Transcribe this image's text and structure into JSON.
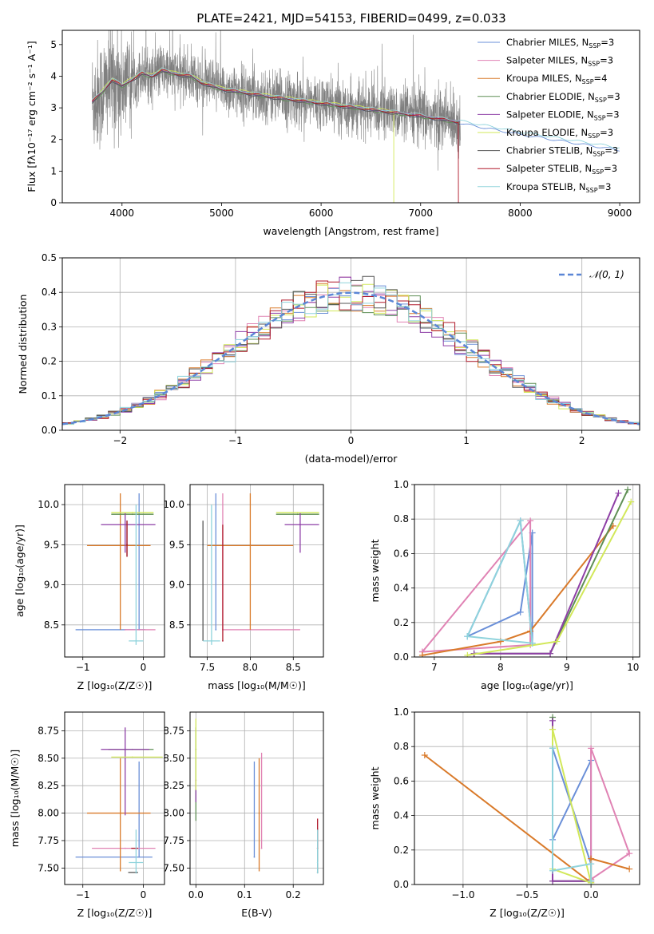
{
  "title": "PLATE=2421, MJD=54153, FIBERID=0499, z=0.033",
  "colors": {
    "chabrier_miles": "#6a8fd8",
    "salpeter_miles": "#e083b4",
    "kroupa_miles": "#d97a2a",
    "chabrier_elodie": "#5f8f55",
    "salpeter_elodie": "#8e3fa6",
    "kroupa_elodie": "#d2e85a",
    "chabrier_stelib": "#555555",
    "salpeter_stelib": "#b0182a",
    "kroupa_stelib": "#8fd3dc",
    "spectrum": "#808080",
    "normal": "#5b86d6"
  },
  "chart_data": [
    {
      "id": "spectrum",
      "type": "line",
      "title": "PLATE=2421, MJD=54153, FIBERID=0499, z=0.033",
      "xlabel": "wavelength [Angstrom, rest frame]",
      "ylabel": "Flux [fλ10⁻¹⁷ erg cm⁻² s⁻¹ A⁻¹]",
      "xlim": [
        3400,
        9200
      ],
      "ylim": [
        0,
        5.45
      ],
      "xticks": [
        4000,
        5000,
        6000,
        7000,
        8000,
        9000
      ],
      "yticks": [
        0,
        1,
        2,
        3,
        4,
        5
      ],
      "legend_position": "top-right",
      "legend": [
        {
          "main": "Chabrier MILES, N",
          "sub": "SSP",
          "tail": "=3",
          "color": "chabrier_miles"
        },
        {
          "main": "Salpeter MILES, N",
          "sub": "SSP",
          "tail": "=3",
          "color": "salpeter_miles"
        },
        {
          "main": "Kroupa MILES, N",
          "sub": "SSP",
          "tail": "=4",
          "color": "kroupa_miles"
        },
        {
          "main": "Chabrier ELODIE, N",
          "sub": "SSP",
          "tail": "=3",
          "color": "chabrier_elodie"
        },
        {
          "main": "Salpeter ELODIE, N",
          "sub": "SSP",
          "tail": "=3",
          "color": "salpeter_elodie"
        },
        {
          "main": "Kroupa ELODIE, N",
          "sub": "SSP",
          "tail": "=3",
          "color": "kroupa_elodie"
        },
        {
          "main": "Chabrier STELIB, N",
          "sub": "SSP",
          "tail": "=3",
          "color": "chabrier_stelib"
        },
        {
          "main": "Salpeter STELIB, N",
          "sub": "SSP",
          "tail": "=3",
          "color": "salpeter_stelib"
        },
        {
          "main": "Kroupa STELIB, N",
          "sub": "SSP",
          "tail": "=3",
          "color": "kroupa_stelib"
        }
      ],
      "model_curve": {
        "x": [
          3700,
          3800,
          3900,
          4000,
          4100,
          4200,
          4300,
          4400,
          4500,
          4700,
          4800,
          4900,
          5000,
          5200,
          5500,
          6000,
          6500,
          7000,
          7400,
          8000,
          8500,
          9000
        ],
        "y": [
          3.2,
          3.5,
          3.9,
          3.7,
          3.9,
          4.1,
          4.0,
          4.2,
          4.1,
          4.0,
          3.8,
          3.7,
          3.6,
          3.5,
          3.35,
          3.15,
          2.95,
          2.75,
          2.55,
          2.2,
          1.95,
          1.7
        ]
      },
      "spectrum_range": [
        3700,
        7400
      ]
    },
    {
      "id": "residuals",
      "type": "line",
      "xlabel": "(data-model)/error",
      "ylabel": "Normed distribution",
      "xlim": [
        -2.5,
        2.5
      ],
      "ylim": [
        0,
        0.5
      ],
      "xticks": [
        -2,
        -1,
        0,
        1,
        2
      ],
      "yticks": [
        0.0,
        0.1,
        0.2,
        0.3,
        0.4,
        0.5
      ],
      "legend": "𝒩(0, 1)",
      "legend_position": "top-right",
      "bin_width": 0.1
    },
    {
      "id": "age_vs_z",
      "type": "scatter",
      "xlabel": "Z [log₁₀(Z/Z☉)]",
      "ylabel": "age [log₁₀(age/yr)]",
      "xlim": [
        -1.3,
        0.35
      ],
      "ylim": [
        8.1,
        10.25
      ],
      "xticks": [
        -1,
        0
      ],
      "yticks": [
        8.5,
        9.0,
        9.5,
        10.0
      ],
      "points": [
        {
          "x": -0.07,
          "y": 8.44,
          "xerr": [
            1.05,
            0.1
          ],
          "yerr": [
            0.0,
            1.7
          ],
          "color": "chabrier_miles"
        },
        {
          "x": -0.3,
          "y": 8.44,
          "xerr": [
            0.0,
            0.5
          ],
          "yerr": [
            0.0,
            0.0
          ],
          "color": "salpeter_miles"
        },
        {
          "x": -0.38,
          "y": 9.49,
          "xerr": [
            0.55,
            0.5
          ],
          "yerr": [
            1.05,
            0.65
          ],
          "color": "kroupa_miles"
        },
        {
          "x": -0.18,
          "y": 9.88,
          "xerr": [
            0.35,
            0.35
          ],
          "yerr": [
            0.0,
            0.0
          ],
          "color": "chabrier_elodie"
        },
        {
          "x": -0.3,
          "y": 9.75,
          "xerr": [
            0.4,
            0.5
          ],
          "yerr": [
            0.35,
            0.15
          ],
          "color": "salpeter_elodie"
        },
        {
          "x": -0.18,
          "y": 9.9,
          "xerr": [
            0.35,
            0.35
          ],
          "yerr": [
            0.0,
            0.0
          ],
          "color": "kroupa_elodie"
        },
        {
          "x": -0.27,
          "y": 9.5,
          "xerr": [
            0.0,
            0.0
          ],
          "yerr": [
            0.15,
            0.3
          ],
          "color": "chabrier_stelib"
        },
        {
          "x": -0.27,
          "y": 9.5,
          "xerr": [
            0.0,
            0.0
          ],
          "yerr": [
            0.15,
            0.3
          ],
          "color": "salpeter_stelib"
        },
        {
          "x": -0.12,
          "y": 8.3,
          "xerr": [
            0.12,
            0.12
          ],
          "yerr": [
            0.05,
            1.7
          ],
          "color": "kroupa_stelib"
        }
      ]
    },
    {
      "id": "age_vs_mass",
      "type": "scatter",
      "xlabel": "mass [log₁₀(M/M☉)]",
      "ylabel": "",
      "xlim": [
        7.3,
        8.85
      ],
      "ylim": [
        8.1,
        10.25
      ],
      "xticks": [
        7.5,
        8.0,
        8.5
      ],
      "yticks": [
        8.5,
        9.0,
        9.5,
        10.0
      ],
      "points": [
        {
          "x": 7.6,
          "y": 8.44,
          "xerr": [
            0.0,
            0.0
          ],
          "yerr": [
            0.0,
            1.7
          ],
          "color": "chabrier_miles"
        },
        {
          "x": 7.68,
          "y": 8.44,
          "xerr": [
            0.0,
            0.9
          ],
          "yerr": [
            0.0,
            1.7
          ],
          "color": "salpeter_miles"
        },
        {
          "x": 8.0,
          "y": 9.49,
          "xerr": [
            0.5,
            0.5
          ],
          "yerr": [
            1.05,
            0.65
          ],
          "color": "kroupa_miles"
        },
        {
          "x": 8.55,
          "y": 9.88,
          "xerr": [
            0.25,
            0.25
          ],
          "yerr": [
            0.0,
            0.0
          ],
          "color": "chabrier_elodie"
        },
        {
          "x": 8.58,
          "y": 9.75,
          "xerr": [
            0.18,
            0.22
          ],
          "yerr": [
            0.35,
            0.15
          ],
          "color": "salpeter_elodie"
        },
        {
          "x": 8.55,
          "y": 9.9,
          "xerr": [
            0.25,
            0.25
          ],
          "yerr": [
            0.0,
            0.0
          ],
          "color": "kroupa_elodie"
        },
        {
          "x": 7.45,
          "y": 9.5,
          "xerr": [
            0.0,
            0.0
          ],
          "yerr": [
            1.2,
            0.3
          ],
          "color": "chabrier_stelib"
        },
        {
          "x": 7.68,
          "y": 8.3,
          "xerr": [
            0.0,
            0.0
          ],
          "yerr": [
            0.0,
            1.45
          ],
          "color": "salpeter_stelib"
        },
        {
          "x": 7.55,
          "y": 8.3,
          "xerr": [
            0.1,
            0.1
          ],
          "yerr": [
            0.05,
            1.7
          ],
          "color": "kroupa_stelib"
        }
      ]
    },
    {
      "id": "weight_vs_age",
      "type": "line",
      "xlabel": "age [log₁₀(age/yr)]",
      "ylabel": "mass weight",
      "xlim": [
        6.7,
        10.1
      ],
      "ylim": [
        0,
        1
      ],
      "xticks": [
        7,
        8,
        9,
        10
      ],
      "yticks": [
        0.0,
        0.2,
        0.4,
        0.6,
        0.8,
        1.0
      ],
      "series": [
        {
          "color": "chabrier_miles",
          "x": [
            7.5,
            8.3,
            8.48,
            8.48,
            8.3,
            7.5
          ],
          "y": [
            0.12,
            0.26,
            0.72,
            0.08,
            0.79,
            0.12
          ]
        },
        {
          "color": "salpeter_miles",
          "x": [
            6.82,
            8.45,
            8.45,
            6.82
          ],
          "y": [
            0.03,
            0.79,
            0.07,
            0.03
          ]
        },
        {
          "color": "kroupa_miles",
          "x": [
            6.82,
            8.0,
            8.45,
            9.7
          ],
          "y": [
            0.01,
            0.09,
            0.15,
            0.76
          ]
        },
        {
          "color": "chabrier_elodie",
          "x": [
            7.6,
            8.75,
            9.92
          ],
          "y": [
            0.02,
            0.02,
            0.97
          ]
        },
        {
          "color": "salpeter_elodie",
          "x": [
            7.6,
            8.75,
            9.78
          ],
          "y": [
            0.02,
            0.02,
            0.95
          ]
        },
        {
          "color": "kroupa_elodie",
          "x": [
            7.5,
            8.85,
            9.97
          ],
          "y": [
            0.01,
            0.09,
            0.9
          ]
        },
        {
          "color": "kroupa_stelib",
          "x": [
            7.5,
            8.3,
            8.48,
            7.5
          ],
          "y": [
            0.12,
            0.79,
            0.08,
            0.12
          ]
        }
      ]
    },
    {
      "id": "mass_vs_z",
      "type": "scatter",
      "xlabel": "Z [log₁₀(Z/Z☉)]",
      "ylabel": "mass [log₁₀(M/M☉)]",
      "xlim": [
        -1.3,
        0.35
      ],
      "ylim": [
        7.35,
        8.92
      ],
      "xticks": [
        -1,
        0
      ],
      "yticks": [
        7.5,
        7.75,
        8.0,
        8.25,
        8.5,
        8.75
      ],
      "points": [
        {
          "x": -0.07,
          "y": 7.6,
          "xerr": [
            1.05,
            0.22
          ],
          "yerr": [
            0.0,
            0.87
          ],
          "color": "chabrier_miles"
        },
        {
          "x": -0.3,
          "y": 7.68,
          "xerr": [
            0.55,
            0.5
          ],
          "yerr": [
            0.0,
            0.0
          ],
          "color": "salpeter_miles"
        },
        {
          "x": -0.38,
          "y": 8.0,
          "xerr": [
            0.55,
            0.5
          ],
          "yerr": [
            0.53,
            0.5
          ],
          "color": "kroupa_miles"
        },
        {
          "x": -0.18,
          "y": 8.58,
          "xerr": [
            0.4,
            0.35
          ],
          "yerr": [
            0.0,
            0.0
          ],
          "color": "chabrier_elodie"
        },
        {
          "x": -0.3,
          "y": 8.58,
          "xerr": [
            0.4,
            0.4
          ],
          "yerr": [
            0.6,
            0.2
          ],
          "color": "salpeter_elodie"
        },
        {
          "x": -0.18,
          "y": 8.51,
          "xerr": [
            0.35,
            0.5
          ],
          "yerr": [
            0.0,
            0.0
          ],
          "color": "kroupa_elodie"
        },
        {
          "x": -0.1,
          "y": 7.46,
          "xerr": [
            0.15,
            0.0
          ],
          "yerr": [
            0.0,
            0.0
          ],
          "color": "chabrier_stelib"
        },
        {
          "x": -0.1,
          "y": 7.68,
          "xerr": [
            0.1,
            0.0
          ],
          "yerr": [
            0.0,
            0.0
          ],
          "color": "salpeter_stelib"
        },
        {
          "x": -0.12,
          "y": 7.55,
          "xerr": [
            0.12,
            0.12
          ],
          "yerr": [
            0.1,
            0.3
          ],
          "color": "kroupa_stelib"
        }
      ]
    },
    {
      "id": "mass_vs_ebv",
      "type": "scatter",
      "xlabel": "E(B-V)",
      "ylabel": "",
      "xlim": [
        -0.012,
        0.262
      ],
      "ylim": [
        7.35,
        8.92
      ],
      "xticks": [
        0.0,
        0.1,
        0.2
      ],
      "yticks": [
        7.5,
        7.75,
        8.0,
        8.25,
        8.5,
        8.75
      ],
      "points": [
        {
          "x": 0.12,
          "y": 7.6,
          "xerr": [
            0.0,
            0.0
          ],
          "yerr": [
            0.0,
            0.87
          ],
          "color": "chabrier_miles"
        },
        {
          "x": 0.135,
          "y": 7.68,
          "xerr": [
            0.0,
            0.0
          ],
          "yerr": [
            0.0,
            0.87
          ],
          "color": "salpeter_miles"
        },
        {
          "x": 0.13,
          "y": 8.0,
          "xerr": [
            0.0,
            0.0
          ],
          "yerr": [
            0.53,
            0.5
          ],
          "color": "kroupa_miles"
        },
        {
          "x": 0.0,
          "y": 8.58,
          "xerr": [
            0.0,
            0.0
          ],
          "yerr": [
            0.65,
            0.2
          ],
          "color": "chabrier_elodie"
        },
        {
          "x": 0.0,
          "y": 8.3,
          "xerr": [
            0.0,
            0.0
          ],
          "yerr": [
            0.2,
            0.0
          ],
          "color": "salpeter_elodie"
        },
        {
          "x": 0.0,
          "y": 8.51,
          "xerr": [
            0.0,
            0.0
          ],
          "yerr": [
            0.3,
            0.35
          ],
          "color": "kroupa_elodie"
        },
        {
          "x": 0.25,
          "y": 7.46,
          "xerr": [
            0.0,
            0.0
          ],
          "yerr": [
            0.0,
            0.4
          ],
          "color": "chabrier_stelib"
        },
        {
          "x": 0.25,
          "y": 7.68,
          "xerr": [
            0.0,
            0.0
          ],
          "yerr": [
            0.0,
            0.27
          ],
          "color": "salpeter_stelib"
        },
        {
          "x": 0.25,
          "y": 7.55,
          "xerr": [
            0.0,
            0.0
          ],
          "yerr": [
            0.1,
            0.3
          ],
          "color": "kroupa_stelib"
        }
      ]
    },
    {
      "id": "weight_vs_z",
      "type": "line",
      "xlabel": "Z [log₁₀(Z/Z☉)]",
      "ylabel": "mass weight",
      "xlim": [
        -1.38,
        0.38
      ],
      "ylim": [
        0,
        1
      ],
      "xticks": [
        -1.0,
        -0.5,
        0.0
      ],
      "yticks": [
        0.0,
        0.2,
        0.4,
        0.6,
        0.8,
        1.0
      ],
      "series": [
        {
          "color": "chabrier_miles",
          "x": [
            -0.3,
            -0.3,
            0.0,
            0.0,
            -0.3
          ],
          "y": [
            0.79,
            0.26,
            0.72,
            0.12,
            0.79
          ]
        },
        {
          "color": "salpeter_miles",
          "x": [
            0.0,
            0.0,
            0.3,
            0.0
          ],
          "y": [
            0.03,
            0.79,
            0.18,
            0.03
          ]
        },
        {
          "color": "kroupa_miles",
          "x": [
            -1.3,
            0.0,
            0.0,
            0.3
          ],
          "y": [
            0.75,
            0.01,
            0.15,
            0.09
          ]
        },
        {
          "color": "chabrier_elodie",
          "x": [
            -0.3,
            -0.3,
            0.0
          ],
          "y": [
            0.97,
            0.02,
            0.02
          ]
        },
        {
          "color": "salpeter_elodie",
          "x": [
            -0.3,
            -0.3,
            0.0
          ],
          "y": [
            0.95,
            0.02,
            0.02
          ]
        },
        {
          "color": "kroupa_elodie",
          "x": [
            -0.3,
            -0.3,
            0.0,
            0.0,
            -0.3
          ],
          "y": [
            0.9,
            0.09,
            0.01,
            0.01,
            0.9
          ]
        },
        {
          "color": "kroupa_stelib",
          "x": [
            -0.3,
            -0.3,
            0.0,
            0.0
          ],
          "y": [
            0.79,
            0.08,
            0.12,
            0.02
          ]
        }
      ]
    }
  ]
}
